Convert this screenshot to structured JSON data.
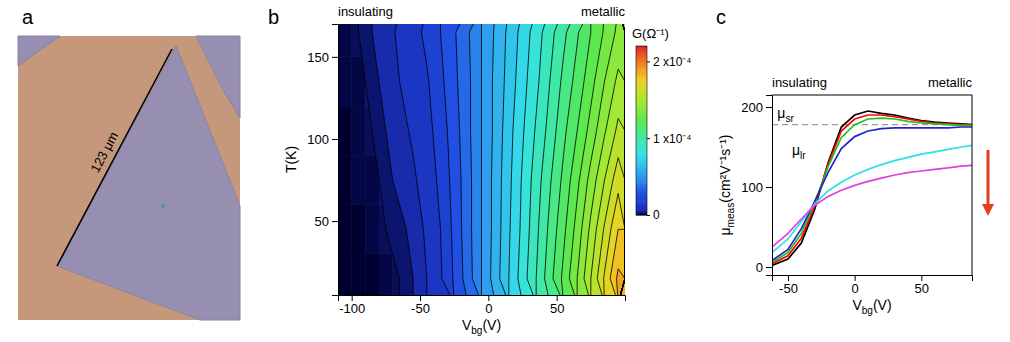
{
  "chart_data": [
    {
      "type": "image",
      "panel": "a",
      "annotation": "123 μm"
    },
    {
      "type": "contour",
      "panel": "b",
      "regime_labels": [
        "insulating",
        "metallic"
      ],
      "x_label": {
        "text": "V",
        "sub": "bg",
        "after": "(V)"
      },
      "y_label": "T(K)",
      "xlim": [
        -110,
        100
      ],
      "xticks": [
        -100,
        -50,
        0,
        50
      ],
      "ylim": [
        5,
        170
      ],
      "yticks": [
        50,
        100,
        150
      ],
      "x": [
        -105,
        -95,
        -85,
        -75,
        -65,
        -55,
        -45,
        -35,
        -25,
        -15,
        -5,
        5,
        15,
        25,
        35,
        45,
        55,
        65,
        75,
        85,
        95
      ],
      "y": [
        15,
        45,
        75,
        105,
        135,
        165
      ],
      "cells": [
        [
          0,
          0,
          0,
          1e-06,
          2e-06,
          4e-06,
          8e-06,
          1.5e-05,
          2.5e-05,
          3.6e-05,
          4.8e-05,
          6e-05,
          7.2e-05,
          8.4e-05,
          9.6e-05,
          0.000109,
          0.000122,
          0.000136,
          0.000152,
          0.000169,
          0.000186
        ],
        [
          0,
          0,
          1e-06,
          2e-06,
          3e-06,
          5e-06,
          9e-06,
          1.6e-05,
          2.6e-05,
          3.7e-05,
          4.8e-05,
          5.9e-05,
          7.1e-05,
          8.2e-05,
          9.4e-05,
          0.000106,
          0.000118,
          0.000131,
          0.000146,
          0.000161,
          0.000176
        ],
        [
          0,
          1e-06,
          1e-06,
          3e-06,
          5e-06,
          7e-06,
          1.1e-05,
          1.8e-05,
          2.7e-05,
          3.7e-05,
          4.8e-05,
          5.9e-05,
          7e-05,
          8.1e-05,
          9.2e-05,
          0.000103,
          0.000114,
          0.000126,
          0.000139,
          0.000152,
          0.000165
        ],
        [
          0,
          1e-06,
          2e-06,
          4e-06,
          6e-06,
          9e-06,
          1.3e-05,
          2e-05,
          2.8e-05,
          3.8e-05,
          4.8e-05,
          5.8e-05,
          6.9e-05,
          7.9e-05,
          8.9e-05,
          9.9e-05,
          0.00011,
          0.00012,
          0.000131,
          0.000143,
          0.000154
        ],
        [
          1e-06,
          1e-06,
          3e-06,
          5e-06,
          8e-06,
          1.1e-05,
          1.5e-05,
          2.2e-05,
          3e-05,
          3.8e-05,
          4.8e-05,
          5.8e-05,
          6.7e-05,
          7.7e-05,
          8.6e-05,
          9.6e-05,
          0.000106,
          0.000115,
          0.000125,
          0.000136,
          0.000146
        ],
        [
          1e-06,
          2e-06,
          4e-06,
          6e-06,
          9e-06,
          1.3e-05,
          1.8e-05,
          2.4e-05,
          3.1e-05,
          3.9e-05,
          4.8e-05,
          5.7e-05,
          6.6e-05,
          7.5e-05,
          8.4e-05,
          9.3e-05,
          0.000102,
          0.000111,
          0.00012,
          0.000129,
          0.000138
        ]
      ],
      "contour_levels": [
        2e-06,
        4e-06,
        8e-06,
        1.6e-05,
        2.4e-05,
        3.2e-05,
        4e-05,
        4.8e-05,
        5.6e-05,
        6.4e-05,
        7.2e-05,
        8e-05,
        8.8e-05,
        9.6e-05,
        0.000104,
        0.000112,
        0.00012,
        0.000128,
        0.000136,
        0.000144,
        0.000152,
        0.00016,
        0.000168,
        0.000176,
        0.000184,
        0.000192
      ],
      "colorbar": {
        "label": "G(Ω⁻¹)",
        "range": [
          0,
          0.00022
        ],
        "ticks": [
          0,
          {
            "value": 0.0001,
            "label": "1 x10⁻⁴"
          },
          {
            "value": 0.0002,
            "label": "2 x10⁻⁴"
          }
        ]
      }
    },
    {
      "type": "line",
      "panel": "c",
      "regime_labels": [
        "insulating",
        "metallic"
      ],
      "x_label": {
        "text": "V",
        "sub": "bg",
        "after": "(V)"
      },
      "y_label": {
        "text": "μ",
        "sub": "meas",
        "after": "(cm²V⁻¹s⁻¹)"
      },
      "xlim": [
        -62,
        88
      ],
      "xticks": [
        -50,
        0,
        50
      ],
      "ylim": [
        -10,
        215
      ],
      "yticks": [
        0,
        100,
        200
      ],
      "x": [
        -62,
        -50,
        -40,
        -30,
        -20,
        -10,
        0,
        10,
        20,
        30,
        40,
        50,
        60,
        70,
        80,
        88
      ],
      "series": [
        {
          "color": "#000000",
          "values": [
            2,
            10,
            30,
            72,
            130,
            175,
            190,
            195,
            192,
            190,
            186,
            183,
            181,
            180,
            179,
            178
          ]
        },
        {
          "color": "#ff0000",
          "values": [
            4,
            14,
            36,
            76,
            128,
            170,
            185,
            190,
            190,
            188,
            185,
            182,
            180,
            179,
            178,
            178
          ]
        },
        {
          "color": "#1fc21f",
          "values": [
            6,
            18,
            42,
            80,
            125,
            162,
            178,
            185,
            186,
            185,
            182,
            180,
            179,
            178,
            177,
            177
          ]
        },
        {
          "color": "#2323d2",
          "values": [
            8,
            22,
            48,
            82,
            118,
            148,
            163,
            170,
            173,
            174,
            174,
            174,
            174,
            174,
            175,
            175
          ]
        },
        {
          "color": "#2fe0e6",
          "values": [
            18,
            35,
            57,
            79,
            95,
            106,
            115,
            122,
            128,
            133,
            137,
            141,
            144,
            147,
            150,
            152
          ]
        },
        {
          "color": "#e040e0",
          "values": [
            25,
            42,
            60,
            77,
            88,
            96,
            102,
            107,
            111,
            115,
            118,
            120,
            122,
            124,
            126,
            127
          ]
        }
      ],
      "hlines": [
        {
          "y": 178,
          "line_style": "dashed",
          "color": "#9a9a9a"
        }
      ],
      "annotations": [
        {
          "text": "μ",
          "sub": "sr",
          "x": -58,
          "y": 186
        },
        {
          "text": "μ",
          "sub": "lr",
          "x": -47,
          "y": 140
        }
      ]
    }
  ]
}
